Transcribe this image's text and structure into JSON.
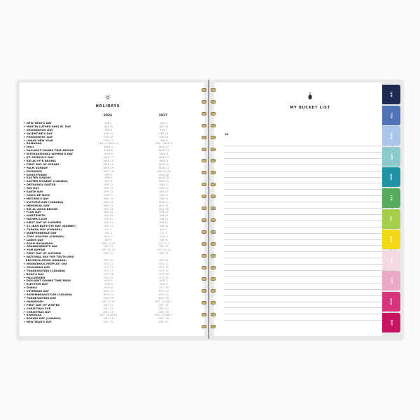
{
  "holidays": {
    "title": "HOLIDAYS",
    "icon": "sun-icon",
    "year1": "2026",
    "year2": "2027",
    "items": [
      {
        "name": "NEW YEAR'S DAY",
        "d1": "JAN 1",
        "d2": "JAN 1"
      },
      {
        "name": "MARTIN LUTHER KING JR. DAY",
        "d1": "JAN 19",
        "d2": "JAN 18"
      },
      {
        "name": "GROUNDHOG DAY",
        "d1": "FEB 2",
        "d2": "FEB 2"
      },
      {
        "name": "VALENTINE'S DAY",
        "d1": "FEB 14",
        "d2": "FEB 14"
      },
      {
        "name": "PRESIDENTS' DAY",
        "d1": "FEB 16",
        "d2": "FEB 15"
      },
      {
        "name": "LUNAR NEW YEAR",
        "d1": "FEB 17",
        "d2": "FEB 6"
      },
      {
        "name": "RAMADAN",
        "d1": "FEB 17-MAR 19",
        "d2": "FEB 7-MAR 8"
      },
      {
        "name": "HOLI",
        "d1": "MAR 4",
        "d2": "MAR 22"
      },
      {
        "name": "DAYLIGHT SAVING TIME BEGINS",
        "d1": "MAR 8",
        "d2": "MAR 14"
      },
      {
        "name": "INTERNATIONAL WOMEN'S DAY",
        "d1": "MAR 8",
        "d2": "MAR 8"
      },
      {
        "name": "ST. PATRICK'S DAY",
        "d1": "MAR 17",
        "d2": "MAR 17"
      },
      {
        "name": "EID AL-FITR BEGINS",
        "d1": "MAR 19",
        "d2": "MAR 9"
      },
      {
        "name": "FIRST DAY OF SPRING",
        "d1": "MAR 20",
        "d2": "MAR 20"
      },
      {
        "name": "PALM SUNDAY",
        "d1": "MAR 29",
        "d2": "MAR 21"
      },
      {
        "name": "PASSOVER",
        "d1": "APR 1-9",
        "d2": "APR 21-29"
      },
      {
        "name": "GOOD FRIDAY",
        "d1": "APR 3",
        "d2": "MAR 26"
      },
      {
        "name": "EASTER SUNDAY",
        "d1": "APR 5",
        "d2": "MAR 28"
      },
      {
        "name": "EASTER MONDAY (CANADA)",
        "d1": "APR 6",
        "d2": "MAR 29"
      },
      {
        "name": "ORTHODOX EASTER",
        "d1": "APR 12",
        "d2": "MAY 2"
      },
      {
        "name": "TAX DAY",
        "d1": "APR 15",
        "d2": "APR 15"
      },
      {
        "name": "EARTH DAY",
        "d1": "APR 22",
        "d2": "APR 22"
      },
      {
        "name": "CINCO DE MAYO",
        "d1": "MAY 5",
        "d2": "MAY 5"
      },
      {
        "name": "MOTHER'S DAY",
        "d1": "MAY 10",
        "d2": "MAY 9"
      },
      {
        "name": "VICTORIA DAY (CANADA)",
        "d1": "MAY 18",
        "d2": "MAY 24"
      },
      {
        "name": "MEMORIAL DAY",
        "d1": "MAY 25",
        "d2": "MAY 31"
      },
      {
        "name": "EID AL-ADHA BEGINS",
        "d1": "MAY 26",
        "d2": "MAY 16"
      },
      {
        "name": "FLAG DAY",
        "d1": "JUN 14",
        "d2": "JUN 14"
      },
      {
        "name": "JUNETEENTH",
        "d1": "JUN 19",
        "d2": "JUN 19"
      },
      {
        "name": "FATHER'S DAY",
        "d1": "JUN 21",
        "d2": "JUN 20"
      },
      {
        "name": "FIRST DAY OF SUMMER",
        "d1": "JUN 21",
        "d2": "JUN 21"
      },
      {
        "name": "ST. JEAN BAPTISTE DAY (QUEBEC)",
        "d1": "JUN 24",
        "d2": "JUN 24"
      },
      {
        "name": "CANADA DAY (CANADA)",
        "d1": "JUL 1",
        "d2": "JUL 1"
      },
      {
        "name": "INDEPENDENCE DAY",
        "d1": "JUL 4",
        "d2": "JUL 4"
      },
      {
        "name": "CIVIC HOLIDAY (CANADA)",
        "d1": "AUG 3",
        "d2": "AUG 2"
      },
      {
        "name": "LABOR DAY",
        "d1": "SEP 7",
        "d2": "SEP 6"
      },
      {
        "name": "ROSH HASHANAH",
        "d1": "SEP 11-13",
        "d2": "OCT 1-3"
      },
      {
        "name": "GRANDPARENTS DAY",
        "d1": "SEP 13",
        "d2": "SEP 12"
      },
      {
        "name": "YOM KIPPUR",
        "d1": "SEP 20-21",
        "d2": "OCT 10-11"
      },
      {
        "name": "FIRST DAY OF AUTUMN",
        "d1": "SEP 22",
        "d2": "SEP 23"
      },
      {
        "name": "NATIONAL DAY FOR TRUTH AND",
        "d1": "",
        "d2": ""
      },
      {
        "name": "RECONCILIATION (CANADA)",
        "d1": "SEP 30",
        "d2": "SEP 30"
      },
      {
        "name": "INDIGENOUS PEOPLES' DAY",
        "d1": "OCT 12",
        "d2": "OCT 11"
      },
      {
        "name": "COLUMBUS DAY",
        "d1": "OCT 12",
        "d2": "OCT 11"
      },
      {
        "name": "THANKSGIVING (CANADA)",
        "d1": "OCT 12",
        "d2": "OCT 11"
      },
      {
        "name": "BOSS'S DAY",
        "d1": "OCT 16",
        "d2": "OCT 16"
      },
      {
        "name": "HALLOWEEN",
        "d1": "OCT 31",
        "d2": "OCT 31"
      },
      {
        "name": "DAYLIGHT SAVING TIME ENDS",
        "d1": "NOV 1",
        "d2": "NOV 7"
      },
      {
        "name": "ELECTION DAY",
        "d1": "NOV 3",
        "d2": "NOV 2"
      },
      {
        "name": "DIWALI",
        "d1": "NOV 8",
        "d2": "OCT 29"
      },
      {
        "name": "VETERANS DAY",
        "d1": "NOV 11",
        "d2": "NOV 11"
      },
      {
        "name": "REMEMBRANCE DAY (CANADA)",
        "d1": "NOV 11",
        "d2": "NOV 11"
      },
      {
        "name": "THANKSGIVING DAY",
        "d1": "NOV 26",
        "d2": "NOV 25"
      },
      {
        "name": "HANUKKAH",
        "d1": "DEC 4-12",
        "d2": "DEC 24-JAN 1"
      },
      {
        "name": "FIRST DAY OF WINTER",
        "d1": "DEC 21",
        "d2": "DEC 21"
      },
      {
        "name": "CHRISTMAS EVE",
        "d1": "DEC 24",
        "d2": "DEC 24"
      },
      {
        "name": "CHRISTMAS DAY",
        "d1": "DEC 25",
        "d2": "DEC 25"
      },
      {
        "name": "KWANZAA",
        "d1": "DEC 26-JAN 1",
        "d2": "DEC 26-JAN 1"
      },
      {
        "name": "BOXING DAY (CANADA)",
        "d1": "DEC 26",
        "d2": "DEC 26"
      },
      {
        "name": "NEW YEAR'S EVE",
        "d1": "DEC 31",
        "d2": "DEC 31"
      }
    ]
  },
  "bucket_list": {
    "title": "MY BUCKET LIST",
    "icon": "pineapple-icon",
    "header_mark": "oo",
    "check_icon": "checkmark-icon"
  },
  "tabs": [
    {
      "label": "JAN",
      "color": "#1f2a52"
    },
    {
      "label": "FEB",
      "color": "#4f72b8"
    },
    {
      "label": "MAR",
      "color": "#a9c6ea"
    },
    {
      "label": "APR",
      "color": "#8ccbcc"
    },
    {
      "label": "MAY",
      "color": "#1f94a4"
    },
    {
      "label": "JUN",
      "color": "#55ad5c"
    },
    {
      "label": "JUL",
      "color": "#a5cf4a"
    },
    {
      "label": "AUG",
      "color": "#f3d914"
    },
    {
      "label": "SEP",
      "color": "#f4d9e4"
    },
    {
      "label": "OCT",
      "color": "#eba9c8"
    },
    {
      "label": "NOV",
      "color": "#d8347c"
    },
    {
      "label": "DEC",
      "color": "#c81462"
    }
  ]
}
